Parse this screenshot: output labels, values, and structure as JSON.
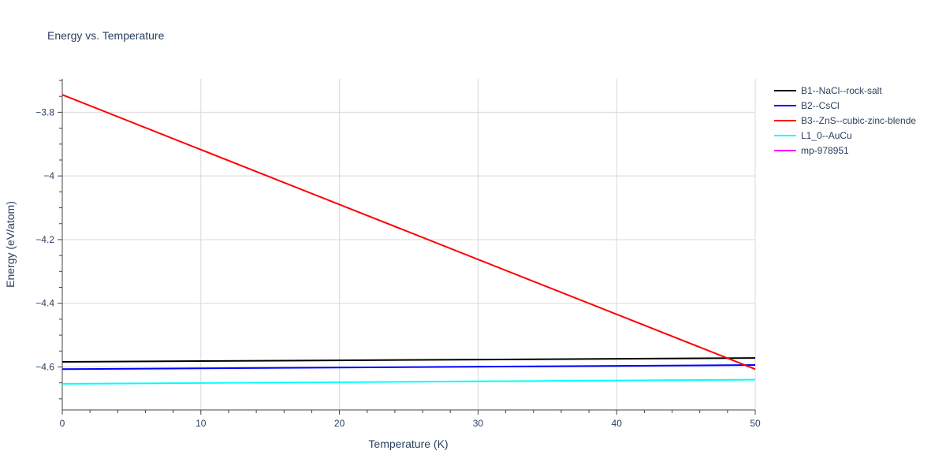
{
  "chart_data": {
    "type": "line",
    "title": "Energy vs. Temperature",
    "xlabel": "Temperature (K)",
    "ylabel": "Energy (eV/atom)",
    "xlim": [
      0,
      50
    ],
    "ylim": [
      -4.735,
      -3.695
    ],
    "xticks": [
      0,
      10,
      20,
      30,
      40,
      50
    ],
    "xtick_labels": [
      "0",
      "10",
      "20",
      "30",
      "40",
      "50"
    ],
    "yticks": [
      -4.6,
      -4.4,
      -4.2,
      -4.0,
      -3.8
    ],
    "ytick_labels": [
      "−4.6",
      "−4.4",
      "−4.2",
      "−4",
      "−3.8"
    ],
    "grid": true,
    "legend_position": "top-right",
    "series": [
      {
        "name": "B1--NaCl--rock-salt",
        "color": "#000000",
        "x": [
          0,
          50
        ],
        "y": [
          -4.584,
          -4.572
        ]
      },
      {
        "name": "B2--CsCl",
        "color": "#0000ff",
        "x": [
          0,
          50
        ],
        "y": [
          -4.607,
          -4.594
        ]
      },
      {
        "name": "B3--ZnS--cubic-zinc-blende",
        "color": "#ff0000",
        "x": [
          0,
          50
        ],
        "y": [
          -3.745,
          -4.607
        ]
      },
      {
        "name": "L1_0--AuCu",
        "color": "#00ffff",
        "x": [
          0,
          50
        ],
        "y": [
          -4.653,
          -4.64
        ]
      },
      {
        "name": "mp-978951",
        "color": "#ff00ff",
        "x": [],
        "y": []
      }
    ]
  }
}
